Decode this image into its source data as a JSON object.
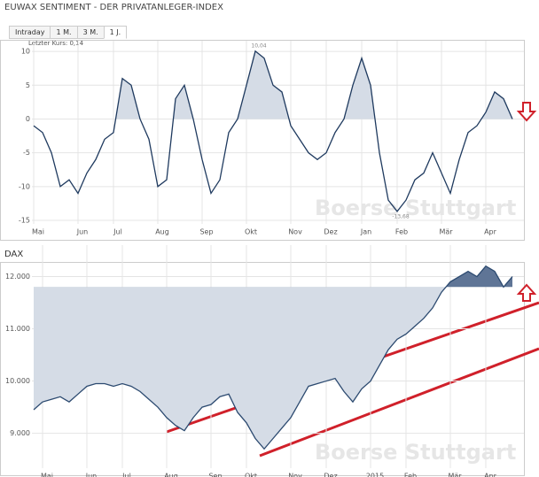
{
  "header": {
    "title": "EUWAX SENTIMENT - DER PRIVATANLEGER-INDEX",
    "tabs": [
      "Intraday",
      "1 M.",
      "3 M.",
      "1 J."
    ],
    "active_tab": 3
  },
  "chart_data": [
    {
      "type": "area",
      "subtitle": "Letzter Kurs: 0,14",
      "watermark": "Boerse Stuttgart",
      "categories": [
        "Mai",
        null,
        null,
        null,
        null,
        "Jun",
        null,
        null,
        null,
        "Jul",
        null,
        null,
        null,
        null,
        "Aug",
        null,
        null,
        null,
        null,
        "Sep",
        null,
        null,
        null,
        null,
        "Okt",
        null,
        null,
        null,
        null,
        "Nov",
        null,
        null,
        null,
        "Dez",
        null,
        null,
        null,
        "Jan",
        null,
        null,
        null,
        "Feb",
        null,
        null,
        null,
        null,
        "Mär",
        null,
        null,
        null,
        null,
        "Apr",
        null,
        null,
        null
      ],
      "series": [
        {
          "name": "EUWAX Sentiment",
          "color": "#1f3a5f",
          "values": [
            -1,
            -2,
            -5,
            -10,
            -9,
            -11,
            -8,
            -6,
            -3,
            -2,
            6,
            5,
            0,
            -3,
            -10,
            -9,
            3,
            5,
            0,
            -6,
            -11,
            -9,
            -2,
            0,
            5,
            10.04,
            9,
            5,
            4,
            -1,
            -3,
            -5,
            -6,
            -5,
            -2,
            0,
            5,
            9,
            5,
            -5,
            -12,
            -13.68,
            -12,
            -9,
            -8,
            -5,
            -8,
            -11,
            -6,
            -2,
            -1,
            1,
            4,
            3,
            0
          ],
          "value_labels": [
            null,
            null,
            null,
            null,
            null,
            null,
            null,
            null,
            null,
            null,
            null,
            null,
            null,
            null,
            null,
            null,
            null,
            null,
            null,
            null,
            null,
            null,
            null,
            null,
            null,
            "10,04",
            null,
            null,
            null,
            null,
            null,
            null,
            null,
            null,
            null,
            null,
            null,
            null,
            null,
            null,
            null,
            "-13,68",
            null,
            null,
            null,
            null,
            null,
            null,
            null,
            null,
            null,
            null,
            null,
            null,
            null
          ]
        }
      ],
      "fill_base": 0,
      "fill_above": "#d5dce6",
      "fill_below": null,
      "ylim": [
        -15,
        10.8
      ],
      "yticks": [
        10,
        5,
        0,
        -5,
        -10,
        -15
      ],
      "grid": true,
      "direction_arrow": "down"
    },
    {
      "type": "area",
      "title": "DAX",
      "watermark": "Boerse Stuttgart",
      "categories": [
        null,
        "Mai",
        null,
        null,
        null,
        null,
        "Jun",
        null,
        null,
        null,
        "Jul",
        null,
        null,
        null,
        null,
        "Aug",
        null,
        null,
        null,
        null,
        "Sep",
        null,
        null,
        null,
        "Okt",
        null,
        null,
        null,
        null,
        "Nov",
        null,
        null,
        null,
        "Dez",
        null,
        null,
        null,
        null,
        "2015",
        null,
        null,
        null,
        "Feb",
        null,
        null,
        null,
        null,
        "Mär",
        null,
        null,
        null,
        "Apr",
        null,
        null,
        null
      ],
      "series": [
        {
          "name": "DAX",
          "color": "#2c4a70",
          "values": [
            9450,
            9600,
            9650,
            9700,
            9600,
            9750,
            9900,
            9950,
            9950,
            9900,
            9950,
            9900,
            9800,
            9650,
            9500,
            9300,
            9150,
            9050,
            9300,
            9500,
            9550,
            9700,
            9750,
            9400,
            9200,
            8900,
            8700,
            8900,
            9100,
            9300,
            9600,
            9900,
            9950,
            10000,
            10050,
            9800,
            9600,
            9850,
            10000,
            10300,
            10600,
            10800,
            10900,
            11050,
            11200,
            11400,
            11700,
            11900,
            12000,
            12100,
            12000,
            12200,
            12100,
            11800,
            12000
          ]
        }
      ],
      "fill_base": 11800,
      "fill_above": "#5f7596",
      "fill_below": "#d5dce6",
      "ylim": [
        8400,
        12500
      ],
      "yticks": [
        {
          "value": 12000,
          "label": "12.000"
        },
        {
          "value": 11000,
          "label": "11.000"
        },
        {
          "value": 10000,
          "label": "10.000"
        },
        {
          "value": 9000,
          "label": "9.000"
        }
      ],
      "grid": true,
      "direction_arrow": "up"
    }
  ]
}
